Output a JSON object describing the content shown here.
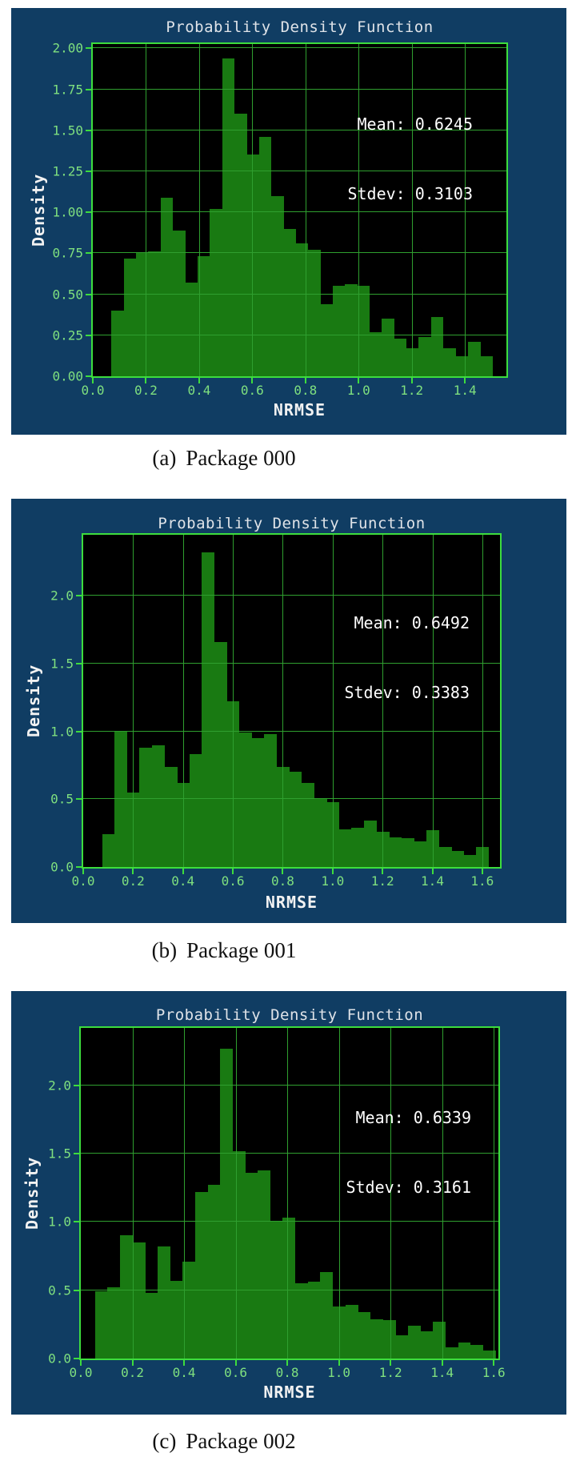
{
  "colors": {
    "page_bg": "#ffffff",
    "figure_bg": "#103d63",
    "plot_bg": "#000000",
    "bar_fill": "#197a12",
    "grid_line": "#2f9f2f",
    "plot_border": "#3ddd3d",
    "tick_label": "#7fe07f",
    "title_text": "#dfe3e8",
    "annotation_text": "#ffffff",
    "caption_text": "#111111"
  },
  "figures": [
    {
      "caption_label": "(a)",
      "caption_text": "Package 000"
    },
    {
      "caption_label": "(b)",
      "caption_text": "Package 001"
    },
    {
      "caption_label": "(c)",
      "caption_text": "Package 002"
    }
  ],
  "chart_data": [
    {
      "type": "bar",
      "subtype": "histogram",
      "title": "Probability Density Function",
      "xlabel": "NRMSE",
      "ylabel": "Density",
      "mean": 0.6245,
      "stdev": 0.3103,
      "annotations": [
        "Mean: 0.6245",
        "Stdev: 0.3103"
      ],
      "grid": true,
      "legend": null,
      "xlim": [
        0,
        1.556
      ],
      "ylim": [
        0,
        2.026
      ],
      "x_ticks": {
        "values": [
          0,
          0.2,
          0.4,
          0.6,
          0.8,
          1.0,
          1.2,
          1.4
        ],
        "labels": [
          "0.0",
          "0.2",
          "0.4",
          "0.6",
          "0.8",
          "1.0",
          "1.2",
          "1.4"
        ]
      },
      "y_ticks": {
        "values": [
          0,
          0.25,
          0.5,
          0.75,
          1.0,
          1.25,
          1.5,
          1.75,
          2.0
        ],
        "labels": [
          "0.00",
          "0.25",
          "0.50",
          "0.75",
          "1.00",
          "1.25",
          "1.50",
          "1.75",
          "2.00"
        ]
      },
      "bars": {
        "start": 0.07,
        "bin_width": 0.04625,
        "heights": [
          0.4,
          0.72,
          0.75,
          0.76,
          1.09,
          0.89,
          0.57,
          0.73,
          1.02,
          1.94,
          1.6,
          1.35,
          1.46,
          1.1,
          0.9,
          0.81,
          0.77,
          0.44,
          0.55,
          0.56,
          0.55,
          0.27,
          0.35,
          0.23,
          0.17,
          0.24,
          0.36,
          0.17,
          0.12,
          0.21,
          0.12
        ]
      }
    },
    {
      "type": "bar",
      "subtype": "histogram",
      "title": "Probability Density Function",
      "xlabel": "NRMSE",
      "ylabel": "Density",
      "mean": 0.6492,
      "stdev": 0.3383,
      "annotations": [
        "Mean: 0.6492",
        "Stdev: 0.3383"
      ],
      "grid": true,
      "legend": null,
      "xlim": [
        0,
        1.671
      ],
      "ylim": [
        0,
        2.45
      ],
      "x_ticks": {
        "values": [
          0,
          0.2,
          0.4,
          0.6,
          0.8,
          1.0,
          1.2,
          1.4,
          1.6
        ],
        "labels": [
          "0.0",
          "0.2",
          "0.4",
          "0.6",
          "0.8",
          "1.0",
          "1.2",
          "1.4",
          "1.6"
        ]
      },
      "y_ticks": {
        "values": [
          0,
          0.5,
          1.0,
          1.5,
          2.0
        ],
        "labels": [
          "0.0",
          "0.5",
          "1.0",
          "1.5",
          "2.0"
        ]
      },
      "bars": {
        "start": 0.076,
        "bin_width": 0.05,
        "heights": [
          0.24,
          1.0,
          0.55,
          0.88,
          0.9,
          0.74,
          0.62,
          0.83,
          2.32,
          1.66,
          1.22,
          0.99,
          0.95,
          0.98,
          0.74,
          0.7,
          0.62,
          0.51,
          0.48,
          0.28,
          0.29,
          0.34,
          0.26,
          0.22,
          0.21,
          0.19,
          0.27,
          0.15,
          0.12,
          0.09,
          0.15
        ]
      }
    },
    {
      "type": "bar",
      "subtype": "histogram",
      "title": "Probability Density Function",
      "xlabel": "NRMSE",
      "ylabel": "Density",
      "mean": 0.6339,
      "stdev": 0.3161,
      "annotations": [
        "Mean: 0.6339",
        "Stdev: 0.3161"
      ],
      "grid": true,
      "legend": null,
      "xlim": [
        0,
        1.618
      ],
      "ylim": [
        0,
        2.42
      ],
      "x_ticks": {
        "values": [
          0,
          0.2,
          0.4,
          0.6,
          0.8,
          1.0,
          1.2,
          1.4,
          1.6
        ],
        "labels": [
          "0.0",
          "0.2",
          "0.4",
          "0.6",
          "0.8",
          "1.0",
          "1.2",
          "1.4",
          "1.6"
        ]
      },
      "y_ticks": {
        "values": [
          0,
          0.5,
          1.0,
          1.5,
          2.0
        ],
        "labels": [
          "0.0",
          "0.5",
          "1.0",
          "1.5",
          "2.0"
        ]
      },
      "bars": {
        "start": 0.055,
        "bin_width": 0.0485,
        "heights": [
          0.49,
          0.52,
          0.9,
          0.85,
          0.48,
          0.82,
          0.57,
          0.71,
          1.22,
          1.27,
          2.27,
          1.52,
          1.36,
          1.38,
          1.01,
          1.03,
          0.55,
          0.56,
          0.63,
          0.38,
          0.39,
          0.34,
          0.29,
          0.28,
          0.17,
          0.24,
          0.2,
          0.27,
          0.08,
          0.12,
          0.1,
          0.06
        ]
      }
    }
  ]
}
